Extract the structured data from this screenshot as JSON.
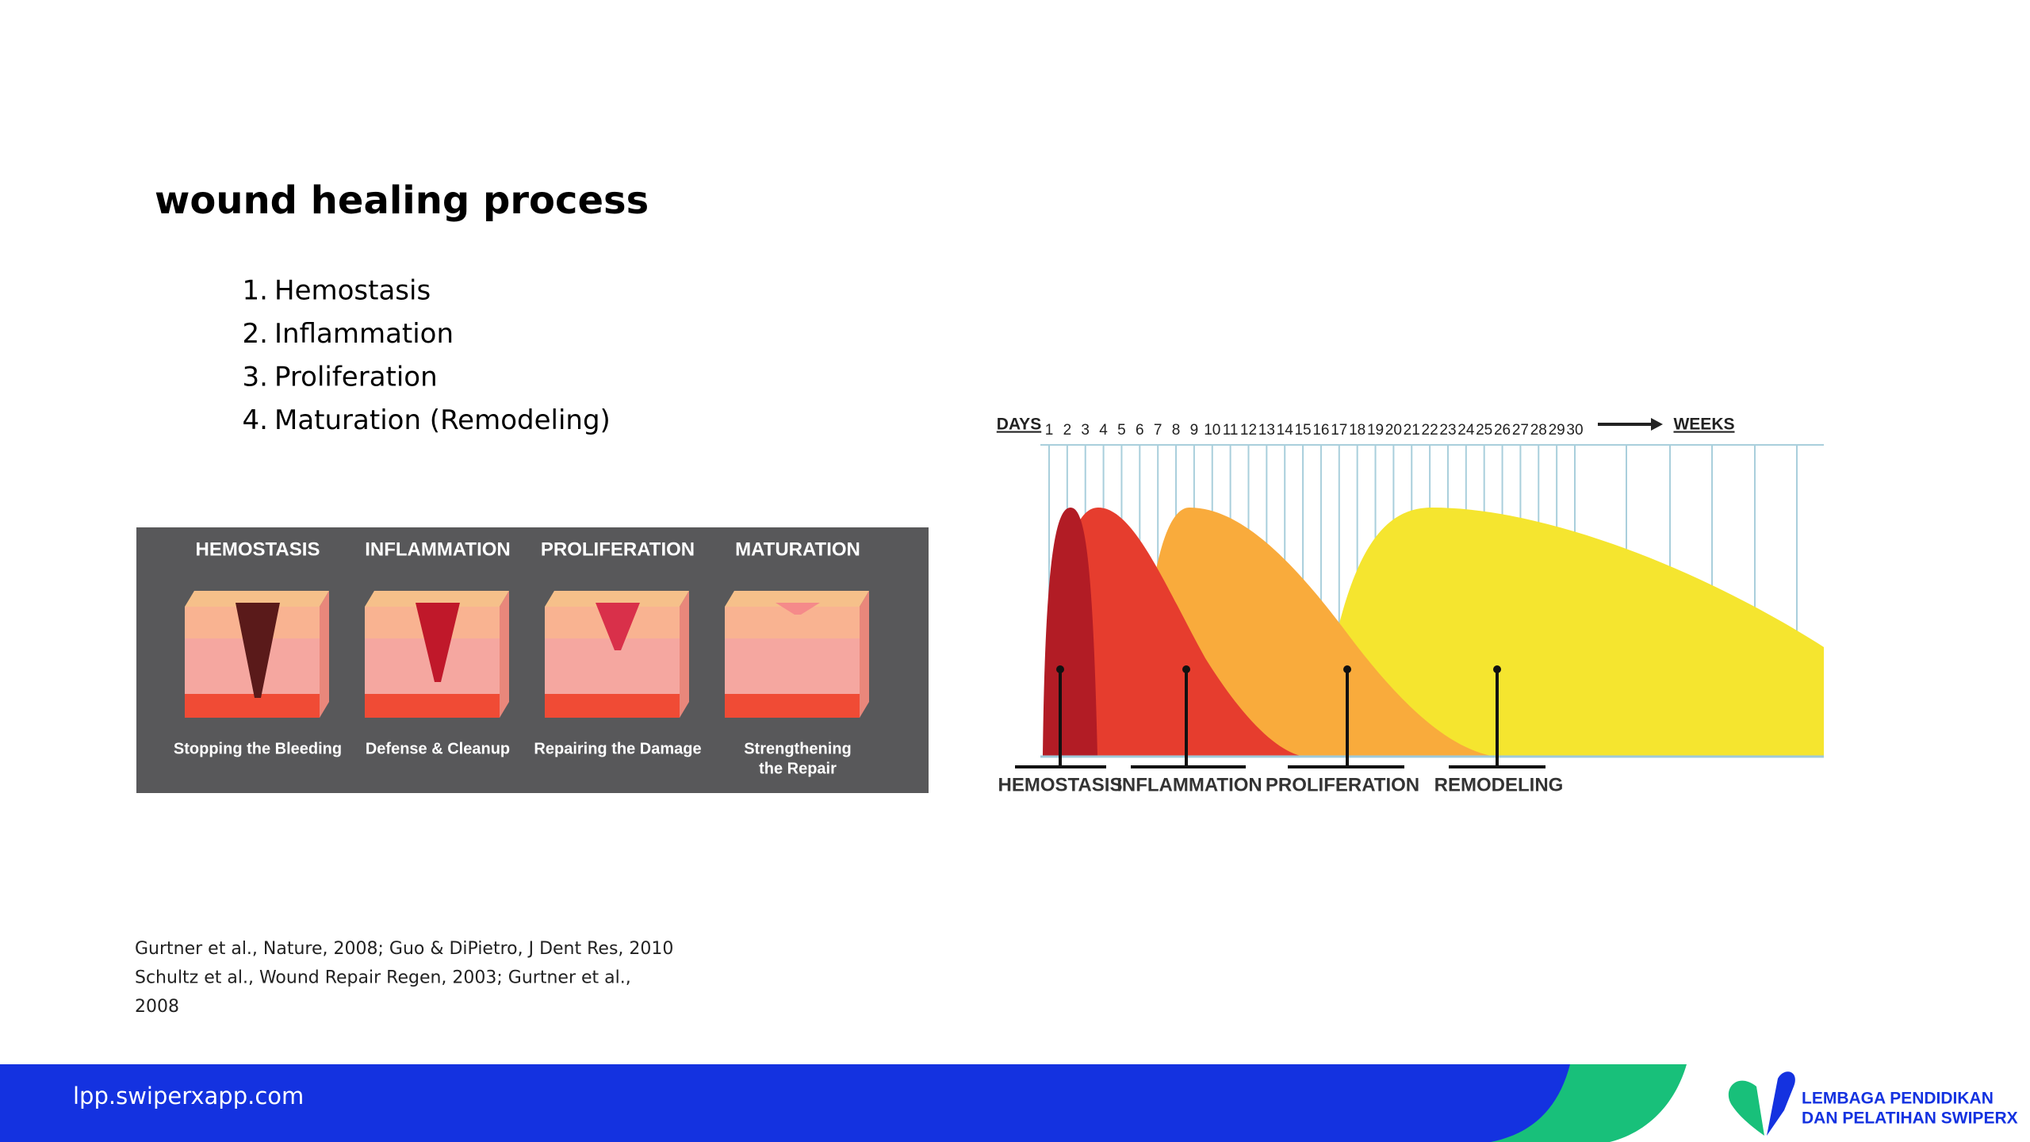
{
  "header": {
    "title": "wound healing process"
  },
  "phases_list": [
    "Hemostasis",
    "Inflammation",
    "Proliferation",
    "Maturation (Remodeling)"
  ],
  "phases_list_markers": [
    "1.",
    "2.",
    "3.",
    "4."
  ],
  "stages_panel": {
    "stages": [
      {
        "title": "HEMOSTASIS",
        "caption": [
          "Stopping the Bleeding"
        ]
      },
      {
        "title": "INFLAMMATION",
        "caption": [
          "Defense & Cleanup"
        ]
      },
      {
        "title": "PROLIFERATION",
        "caption": [
          "Repairing the Damage"
        ]
      },
      {
        "title": "MATURATION",
        "caption": [
          "Strengthening",
          "the Repair"
        ]
      }
    ]
  },
  "timeline": {
    "days_label": "DAYS",
    "days": [
      1,
      2,
      3,
      4,
      5,
      6,
      7,
      8,
      9,
      10,
      11,
      12,
      13,
      14,
      15,
      16,
      17,
      18,
      19,
      20,
      21,
      22,
      23,
      24,
      25,
      26,
      27,
      28,
      29,
      30
    ],
    "weeks_label": "WEEKS",
    "phases": [
      "HEMOSTASIS",
      "INFLAMMATION",
      "PROLIFERATION",
      "REMODELING"
    ]
  },
  "citations": [
    "Gurtner et al., Nature, 2008; Guo & DiPietro, J Dent Res, 2010",
    "Schultz et al., Wound Repair Regen, 2003; Gurtner et al.,",
    "2008"
  ],
  "footer": {
    "url": "lpp.swiperxapp.com",
    "logo_lines": [
      "LEMBAGA PENDIDIKAN",
      "DAN PELATIHAN SWIPERX"
    ]
  }
}
